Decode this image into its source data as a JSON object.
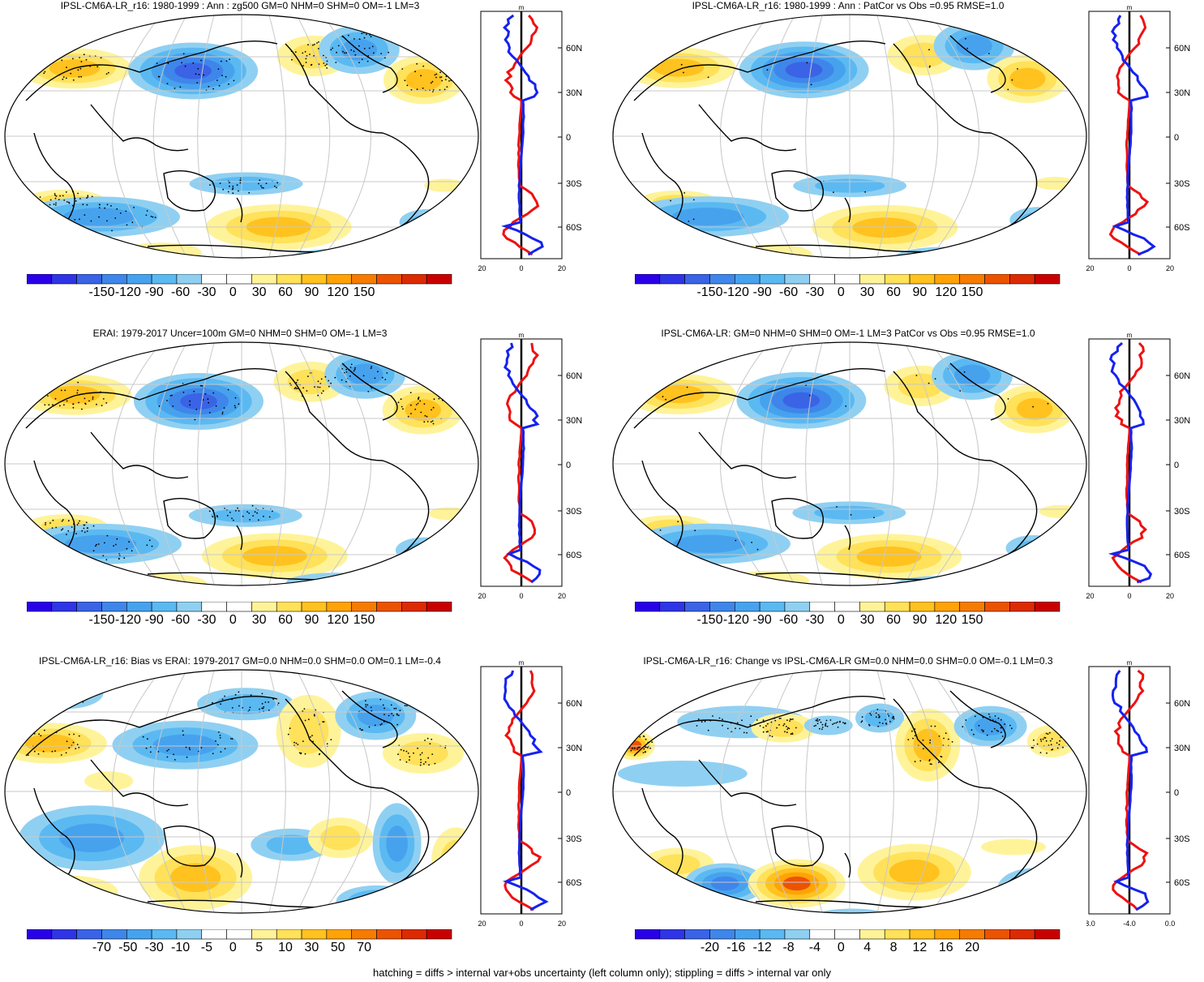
{
  "panels": [
    {
      "title": "IPSL-CM6A-LR_r16: 1980-1999 : Ann : zg500 GM=0 NHM=0 SHM=0 OM=-1 LM=3",
      "cbar": [
        "-150",
        "-120",
        "-90",
        "-60",
        "-30",
        "0",
        "30",
        "60",
        "90",
        "120",
        "150"
      ],
      "prof_ticks": [
        "-20",
        "0",
        "20"
      ],
      "variant": "a"
    },
    {
      "title": "IPSL-CM6A-LR_r16: 1980-1999 : Ann : PatCor vs Obs =0.95 RMSE=1.0",
      "cbar": [
        "-150",
        "-120",
        "-90",
        "-60",
        "-30",
        "0",
        "30",
        "60",
        "90",
        "120",
        "150"
      ],
      "prof_ticks": [
        "-20",
        "0",
        "20"
      ],
      "variant": "a"
    },
    {
      "title": "ERAI: 1979-2017 Uncer=100m GM=0 NHM=0 SHM=0 OM=-1 LM=3",
      "cbar": [
        "-150",
        "-120",
        "-90",
        "-60",
        "-30",
        "0",
        "30",
        "60",
        "90",
        "120",
        "150"
      ],
      "prof_ticks": [
        "-20",
        "0",
        "20"
      ],
      "variant": "a"
    },
    {
      "title": "IPSL-CM6A-LR: GM=0 NHM=0 SHM=0 OM=-1 LM=3 PatCor vs Obs =0.95 RMSE=1.0",
      "cbar": [
        "-150",
        "-120",
        "-90",
        "-60",
        "-30",
        "0",
        "30",
        "60",
        "90",
        "120",
        "150"
      ],
      "prof_ticks": [
        "-20",
        "0",
        "20"
      ],
      "variant": "a"
    },
    {
      "title": "IPSL-CM6A-LR_r16: Bias vs ERAI: 1979-2017 GM=0.0 NHM=0.0 SHM=0.0 OM=0.1 LM=-0.4",
      "cbar": [
        "-70",
        "-50",
        "-30",
        "-10",
        "-5",
        "0",
        "5",
        "10",
        "30",
        "50",
        "70"
      ],
      "prof_ticks": [
        "-20",
        "0",
        "20"
      ],
      "variant": "b"
    },
    {
      "title": "IPSL-CM6A-LR_r16: Change vs IPSL-CM6A-LR GM=0.0 NHM=0.0 SHM=0.0 OM=-0.1 LM=0.3",
      "cbar": [
        "-20",
        "-16",
        "-12",
        "-8",
        "-4",
        "0",
        "4",
        "8",
        "12",
        "16",
        "20"
      ],
      "prof_ticks": [
        "-8.0",
        "-4.0",
        "0.0"
      ],
      "variant": "c"
    }
  ],
  "lat_labels": [
    "60N",
    "30N",
    "0",
    "30S",
    "60S"
  ],
  "unit": "m",
  "colors": [
    "#2a00e8",
    "#2f35e6",
    "#3a63e6",
    "#3f86ea",
    "#47a2ee",
    "#5bb9f2",
    "#8fd0f2",
    "#ffffff",
    "#ffffff",
    "#fff39a",
    "#ffe15a",
    "#ffc21f",
    "#ffa307",
    "#f67c00",
    "#ec5300",
    "#dc2b00",
    "#c90000"
  ],
  "footnote": "hatching = diffs > internal var+obs uncertainty (left column only); stippling = diffs > internal var only"
}
